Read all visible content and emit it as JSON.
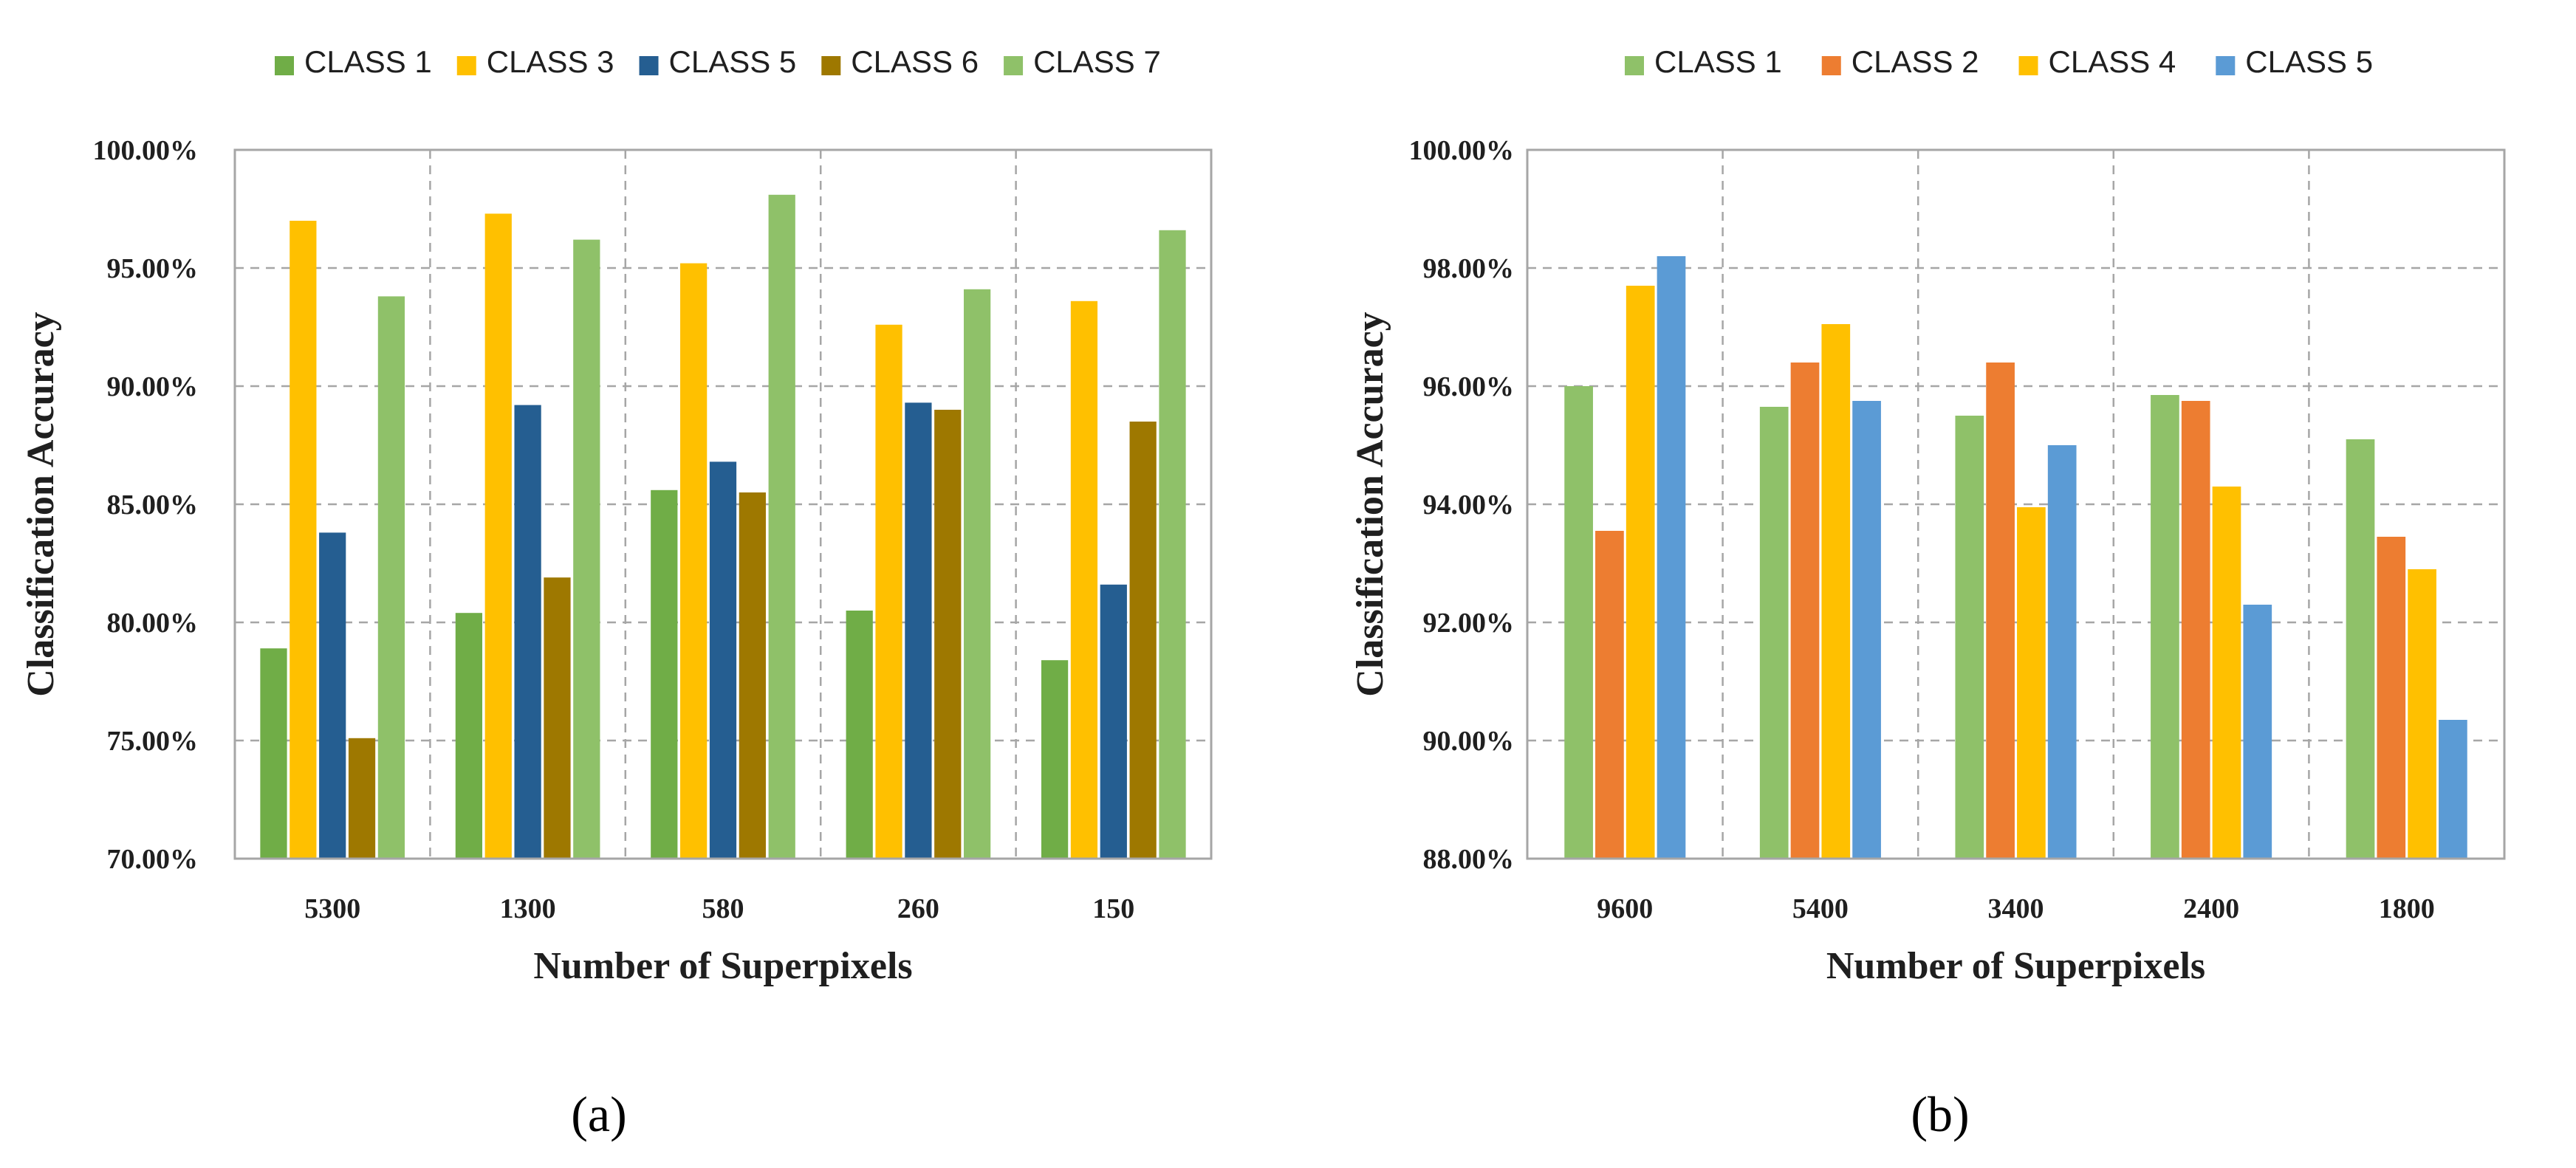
{
  "chart_data": [
    {
      "id": "a",
      "type": "bar",
      "panel_label": "(a)",
      "title": "",
      "xlabel": "Number of Superpixels",
      "ylabel": "Classification Accuracy",
      "categories": [
        "5300",
        "1300",
        "580",
        "260",
        "150"
      ],
      "ylim": [
        70,
        100
      ],
      "yticks": [
        70,
        75,
        80,
        85,
        90,
        95,
        100
      ],
      "ytick_labels": [
        "70.00%",
        "75.00%",
        "80.00%",
        "85.00%",
        "90.00%",
        "95.00%",
        "100.00%"
      ],
      "grid": true,
      "legend_position": "top",
      "series": [
        {
          "name": "CLASS 1",
          "color": "#70ad47",
          "values": [
            78.9,
            80.4,
            85.6,
            80.5,
            78.4
          ]
        },
        {
          "name": "CLASS 3",
          "color": "#ffc000",
          "values": [
            97.0,
            97.3,
            95.2,
            92.6,
            93.6
          ]
        },
        {
          "name": "CLASS 5",
          "color": "#255e91",
          "values": [
            83.8,
            89.2,
            86.8,
            89.3,
            81.6
          ]
        },
        {
          "name": "CLASS 6",
          "color": "#9e7800",
          "values": [
            75.1,
            81.9,
            85.5,
            89.0,
            88.5
          ]
        },
        {
          "name": "CLASS 7",
          "color": "#8fc169",
          "values": [
            93.8,
            96.2,
            98.1,
            94.1,
            96.6
          ]
        }
      ]
    },
    {
      "id": "b",
      "type": "bar",
      "panel_label": "(b)",
      "title": "",
      "xlabel": "Number of Superpixels",
      "ylabel": "Classification Accuracy",
      "categories": [
        "9600",
        "5400",
        "3400",
        "2400",
        "1800"
      ],
      "ylim": [
        88,
        100
      ],
      "yticks": [
        88,
        90,
        92,
        94,
        96,
        98,
        100
      ],
      "ytick_labels": [
        "88.00%",
        "90.00%",
        "92.00%",
        "94.00%",
        "96.00%",
        "98.00%",
        "100.00%"
      ],
      "grid": true,
      "legend_position": "top",
      "series": [
        {
          "name": "CLASS 1",
          "color": "#8fc169",
          "values": [
            96.0,
            95.65,
            95.5,
            95.85,
            95.1
          ]
        },
        {
          "name": "CLASS 2",
          "color": "#ed7d31",
          "values": [
            93.55,
            96.4,
            96.4,
            95.75,
            93.45
          ]
        },
        {
          "name": "CLASS 4",
          "color": "#ffc000",
          "values": [
            97.7,
            97.05,
            93.95,
            94.3,
            92.9
          ]
        },
        {
          "name": "CLASS 5",
          "color": "#5b9bd5",
          "values": [
            98.2,
            95.75,
            95.0,
            92.3,
            90.35
          ]
        }
      ]
    }
  ]
}
